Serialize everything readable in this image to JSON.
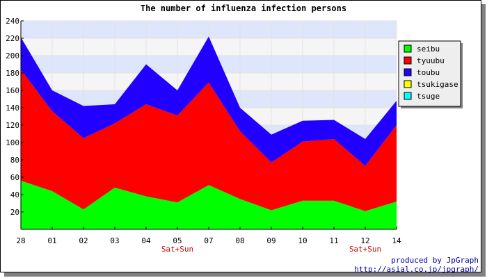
{
  "chart_data": {
    "type": "area",
    "stacked": true,
    "title": "The number of influenza infection persons",
    "categories": [
      "28",
      "01",
      "02",
      "03",
      "04",
      "05",
      "07",
      "08",
      "09",
      "10",
      "11",
      "12",
      "14"
    ],
    "category_notes": {
      "5": "Sat+Sun",
      "11": "Sat+Sun"
    },
    "ylim": [
      0,
      240
    ],
    "yticks": [
      20,
      40,
      60,
      80,
      100,
      120,
      140,
      160,
      180,
      200,
      220,
      240
    ],
    "grid": true,
    "legend_position": "right",
    "series": [
      {
        "name": "seibu",
        "color": "#00ff00",
        "values": [
          56,
          44,
          23,
          48,
          38,
          31,
          51,
          35,
          22,
          33,
          33,
          21,
          32
        ]
      },
      {
        "name": "tyuubu",
        "color": "#ff0000",
        "values": [
          128,
          92,
          82,
          74,
          106,
          100,
          118,
          78,
          55,
          68,
          71,
          52,
          88
        ]
      },
      {
        "name": "toubu",
        "color": "#2200ff",
        "values": [
          37,
          24,
          37,
          22,
          46,
          29,
          53,
          27,
          32,
          24,
          22,
          31,
          28
        ]
      },
      {
        "name": "tsukigase",
        "color": "#ffff00",
        "values": [
          0,
          0,
          0,
          0,
          0,
          0,
          0,
          0,
          0,
          0,
          0,
          0,
          0
        ]
      },
      {
        "name": "tsuge",
        "color": "#00ffff",
        "values": [
          0,
          0,
          0,
          0,
          0,
          0,
          0,
          0,
          0,
          0,
          0,
          0,
          0
        ]
      }
    ]
  },
  "credit": {
    "line1": "produced by JpGraph",
    "line2": "http://asial.co.jp/jpgraph/"
  }
}
